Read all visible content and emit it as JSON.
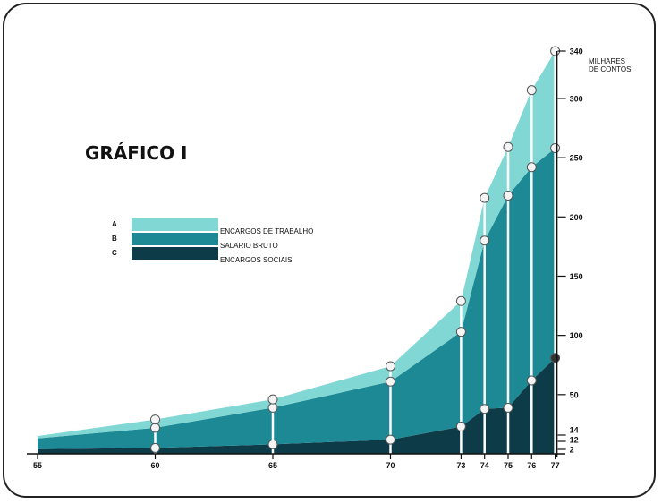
{
  "chart_data": {
    "type": "area",
    "stacked": true,
    "title": "GRÁFICO I",
    "ylabel": "MILHARES DE CONTOS",
    "xlabel": "",
    "x": [
      55,
      60,
      65,
      70,
      73,
      74,
      75,
      76,
      77
    ],
    "x_tick_labels": [
      "55",
      "60",
      "65",
      "70",
      "73",
      "74",
      "75",
      "76",
      "77"
    ],
    "y_ticks": [
      2,
      12,
      14,
      50,
      100,
      150,
      200,
      250,
      300,
      340
    ],
    "ylim": [
      0,
      340
    ],
    "y_axis_position": "right",
    "legend_placement": "center-left",
    "series": [
      {
        "key": "C",
        "name": "ENCARGOS SOCIAIS",
        "color": "#0e3b48",
        "values": [
          4,
          5,
          8,
          12,
          23,
          38,
          39,
          62,
          81
        ]
      },
      {
        "key": "B",
        "name": "SALARIO BRUTO",
        "color": "#1d8995",
        "values": [
          9,
          17,
          31,
          49,
          80,
          142,
          179,
          180,
          177
        ]
      },
      {
        "key": "A",
        "name": "ENCARGOS DE TRABALHO",
        "color": "#80d7d3",
        "values": [
          2,
          7,
          7,
          13,
          26,
          36,
          41,
          65,
          82
        ]
      }
    ]
  }
}
